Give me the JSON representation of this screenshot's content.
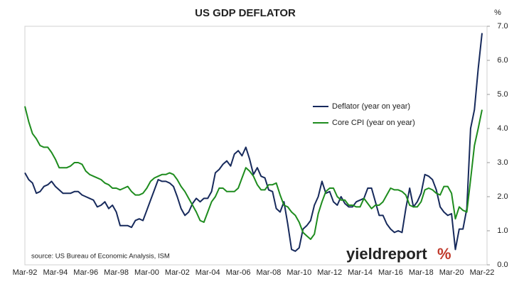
{
  "chart_data": {
    "type": "line",
    "title": "US GDP DEFLATOR",
    "y_unit": "%",
    "source": "source: US Bureau of Economic Analysis, ISM",
    "brand": "yieldreport",
    "brand_mark": "%",
    "categories": [
      "Mar-92",
      null,
      null,
      null,
      null,
      null,
      null,
      null,
      "Mar-94",
      null,
      null,
      null,
      null,
      null,
      null,
      null,
      "Mar-96",
      null,
      null,
      null,
      null,
      null,
      null,
      null,
      "Mar-98",
      null,
      null,
      null,
      null,
      null,
      null,
      null,
      "Mar-00",
      null,
      null,
      null,
      null,
      null,
      null,
      null,
      "Mar-02",
      null,
      null,
      null,
      null,
      null,
      null,
      null,
      "Mar-04",
      null,
      null,
      null,
      null,
      null,
      null,
      null,
      "Mar-06",
      null,
      null,
      null,
      null,
      null,
      null,
      null,
      "Mar-08",
      null,
      null,
      null,
      null,
      null,
      null,
      null,
      "Mar-10",
      null,
      null,
      null,
      null,
      null,
      null,
      null,
      "Mar-12",
      null,
      null,
      null,
      null,
      null,
      null,
      null,
      "Mar-14",
      null,
      null,
      null,
      null,
      null,
      null,
      null,
      "Mar-16",
      null,
      null,
      null,
      null,
      null,
      null,
      null,
      "Mar-18",
      null,
      null,
      null,
      null,
      null,
      null,
      null,
      "Mar-20",
      null,
      null,
      null,
      null,
      null,
      null,
      null,
      "Mar-22"
    ],
    "series": [
      {
        "name": "Deflator (year on year)",
        "color": "#172a5c",
        "values": [
          2.7,
          2.5,
          2.4,
          2.1,
          2.15,
          2.3,
          2.35,
          2.45,
          2.3,
          2.2,
          2.1,
          2.1,
          2.1,
          2.15,
          2.15,
          2.05,
          2.0,
          1.95,
          1.9,
          1.7,
          1.75,
          1.85,
          1.65,
          1.75,
          1.55,
          1.15,
          1.15,
          1.15,
          1.1,
          1.3,
          1.35,
          1.3,
          1.6,
          1.9,
          2.2,
          2.5,
          2.45,
          2.45,
          2.4,
          2.3,
          2.0,
          1.65,
          1.45,
          1.55,
          1.8,
          1.95,
          1.85,
          1.95,
          1.95,
          2.15,
          2.7,
          2.8,
          2.95,
          3.05,
          2.9,
          3.25,
          3.35,
          3.2,
          3.45,
          3.1,
          2.65,
          2.85,
          2.6,
          2.55,
          2.2,
          2.15,
          1.65,
          1.55,
          1.85,
          1.2,
          0.45,
          0.4,
          0.5,
          1.05,
          1.15,
          1.3,
          1.75,
          2.0,
          2.45,
          2.1,
          2.15,
          1.85,
          1.75,
          2.0,
          1.8,
          1.7,
          1.7,
          1.85,
          1.9,
          1.95,
          2.25,
          2.25,
          1.85,
          1.45,
          1.45,
          1.2,
          1.05,
          0.95,
          1.0,
          0.95,
          1.65,
          2.25,
          1.7,
          1.85,
          2.1,
          2.65,
          2.6,
          2.5,
          2.2,
          1.7,
          1.55,
          1.45,
          1.5,
          0.45,
          1.05,
          1.05,
          1.65,
          4.0,
          4.55,
          5.75,
          6.8
        ]
      },
      {
        "name": "Core CPI (year on year)",
        "color": "#1e8c1e",
        "values": [
          4.65,
          4.2,
          3.85,
          3.7,
          3.5,
          3.45,
          3.45,
          3.3,
          3.1,
          2.85,
          2.85,
          2.85,
          2.9,
          3.0,
          3.0,
          2.95,
          2.75,
          2.65,
          2.6,
          2.55,
          2.5,
          2.4,
          2.35,
          2.25,
          2.25,
          2.2,
          2.25,
          2.3,
          2.15,
          2.05,
          2.05,
          2.1,
          2.25,
          2.45,
          2.55,
          2.6,
          2.65,
          2.65,
          2.7,
          2.65,
          2.5,
          2.3,
          2.15,
          1.95,
          1.75,
          1.55,
          1.3,
          1.25,
          1.55,
          1.85,
          2.0,
          2.25,
          2.25,
          2.15,
          2.15,
          2.15,
          2.25,
          2.55,
          2.85,
          2.75,
          2.6,
          2.35,
          2.2,
          2.2,
          2.35,
          2.35,
          2.4,
          2.05,
          1.75,
          1.7,
          1.55,
          1.45,
          1.25,
          0.95,
          0.85,
          0.75,
          0.9,
          1.5,
          1.85,
          2.15,
          2.25,
          2.25,
          2.0,
          1.9,
          1.9,
          1.75,
          1.75,
          1.7,
          1.7,
          1.95,
          1.8,
          1.65,
          1.75,
          1.75,
          1.85,
          2.05,
          2.25,
          2.2,
          2.2,
          2.15,
          2.05,
          1.75,
          1.7,
          1.7,
          1.85,
          2.2,
          2.25,
          2.2,
          2.1,
          2.05,
          2.3,
          2.3,
          2.1,
          1.35,
          1.7,
          1.6,
          1.55,
          2.5,
          3.5,
          4.0,
          4.55
        ]
      }
    ],
    "ylim": [
      0,
      7
    ],
    "yticks": [
      {
        "value": 0,
        "label": "0.0"
      },
      {
        "value": 1,
        "label": "1.0"
      },
      {
        "value": 2,
        "label": "2.0"
      },
      {
        "value": 3,
        "label": "3.0"
      },
      {
        "value": 4,
        "label": "4.0"
      },
      {
        "value": 5,
        "label": "5.0"
      },
      {
        "value": 6,
        "label": "6.0"
      },
      {
        "value": 7,
        "label": "7.0"
      }
    ],
    "y_axis_side": "right",
    "grid": false,
    "legend": "center-right"
  }
}
